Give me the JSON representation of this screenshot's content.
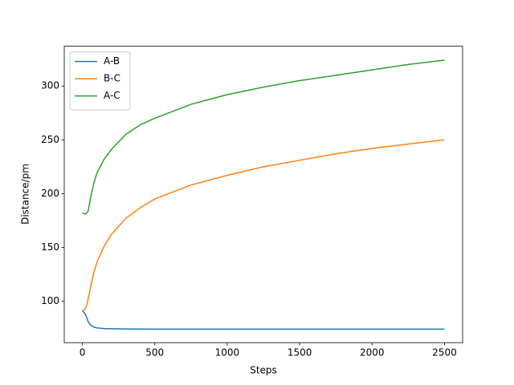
{
  "chart_data": {
    "type": "line",
    "x_label": "Steps",
    "y_label": "Distance/pm",
    "x": [
      0,
      10,
      20,
      30,
      40,
      60,
      80,
      100,
      150,
      200,
      300,
      400,
      500,
      750,
      1000,
      1250,
      1500,
      1750,
      2000,
      2250,
      2500
    ],
    "series": [
      {
        "name": "A-B",
        "color": "#1f77b4",
        "values": [
          91,
          90,
          88,
          85,
          81,
          77.5,
          76,
          75.2,
          74.6,
          74.4,
          74.2,
          74.1,
          74,
          74,
          74,
          74,
          74,
          74,
          74,
          74,
          74
        ]
      },
      {
        "name": "B-C",
        "color": "#ff7f0e",
        "values": [
          91,
          92,
          93,
          96,
          102,
          115,
          127,
          136,
          151,
          162,
          177,
          187,
          195,
          208,
          217,
          225,
          231,
          237,
          242,
          246,
          250
        ]
      },
      {
        "name": "A-C",
        "color": "#2ca02c",
        "values": [
          182,
          181.5,
          181,
          182,
          184,
          198,
          210,
          219,
          232,
          241,
          255,
          264,
          270,
          283,
          292,
          299,
          305,
          310,
          315,
          320,
          324
        ]
      }
    ],
    "xlim": [
      -125,
      2625
    ],
    "xticks": [
      0,
      500,
      1000,
      1500,
      2000,
      2500
    ],
    "ylim": [
      61.5,
      337
    ],
    "yticks": [
      100,
      150,
      200,
      250,
      300
    ],
    "legend": "upper left",
    "grid": false
  }
}
